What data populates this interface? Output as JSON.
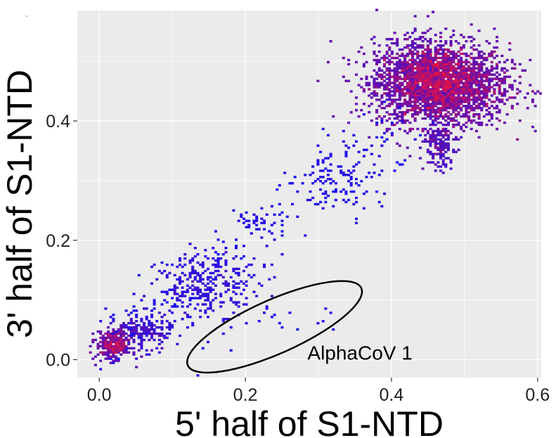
{
  "chart_data": {
    "type": "heatmap",
    "title": "",
    "xlabel": "5' half of S1-NTD",
    "ylabel": "3' half of S1-NTD",
    "xlim": [
      -0.03,
      0.605
    ],
    "ylim": [
      -0.03,
      0.585
    ],
    "x_ticks": [
      0.0,
      0.2,
      0.4,
      0.6
    ],
    "x_tick_labels": [
      "0.0",
      "0.2",
      "0.4",
      "0.6"
    ],
    "y_ticks": [
      0.0,
      0.2,
      0.4
    ],
    "y_tick_labels": [
      "0.0",
      "0.2",
      "0.4"
    ],
    "grid": true,
    "colors": {
      "panel": "#ebebeb",
      "grid": "#ffffff",
      "low": "#1a10f0",
      "high": "#f0103c"
    },
    "clusters": [
      {
        "cx": 0.47,
        "cy": 0.46,
        "sx": 0.045,
        "sy": 0.035,
        "n": 2200,
        "intensity": 1.0
      },
      {
        "cx": 0.445,
        "cy": 0.475,
        "sx": 0.035,
        "sy": 0.03,
        "n": 700,
        "intensity": 0.8
      },
      {
        "cx": 0.465,
        "cy": 0.36,
        "sx": 0.01,
        "sy": 0.02,
        "n": 140,
        "intensity": 0.55
      },
      {
        "cx": 0.02,
        "cy": 0.025,
        "sx": 0.012,
        "sy": 0.012,
        "n": 320,
        "intensity": 0.85
      },
      {
        "cx": 0.06,
        "cy": 0.045,
        "sx": 0.02,
        "sy": 0.015,
        "n": 160,
        "intensity": 0.35
      },
      {
        "cx": 0.15,
        "cy": 0.125,
        "sx": 0.035,
        "sy": 0.025,
        "n": 260,
        "intensity": 0.25
      },
      {
        "cx": 0.335,
        "cy": 0.305,
        "sx": 0.025,
        "sy": 0.03,
        "n": 90,
        "intensity": 0.1
      },
      {
        "cx": 0.22,
        "cy": 0.235,
        "sx": 0.015,
        "sy": 0.01,
        "n": 28,
        "intensity": 0.1
      }
    ],
    "diagonal_scatter": {
      "n": 260,
      "x_range": [
        0.0,
        0.46
      ],
      "slope": 0.96,
      "intercept": 0.01,
      "spread": 0.035
    },
    "alphacov_points": [
      [
        0.14,
        0.02
      ],
      [
        0.15,
        0.03
      ],
      [
        0.17,
        0.045
      ],
      [
        0.18,
        0.055
      ],
      [
        0.2,
        0.06
      ],
      [
        0.22,
        0.065
      ],
      [
        0.225,
        0.08
      ],
      [
        0.23,
        0.085
      ],
      [
        0.24,
        0.075
      ],
      [
        0.235,
        0.07
      ],
      [
        0.245,
        0.06
      ],
      [
        0.25,
        0.055
      ],
      [
        0.26,
        0.08
      ],
      [
        0.27,
        0.05
      ],
      [
        0.3,
        0.06
      ],
      [
        0.31,
        0.085
      ],
      [
        0.315,
        0.08
      ],
      [
        0.32,
        0.05
      ],
      [
        0.18,
        0.015
      ],
      [
        0.305,
        0.065
      ]
    ],
    "annotation": {
      "text": "AlphaCoV 1",
      "ellipse": {
        "cx": 0.24,
        "cy": 0.055,
        "rx": 0.13,
        "ry": 0.045,
        "angle_deg": 24
      },
      "label_x": 0.285,
      "label_y": 0.0
    },
    "corner_mark": "-"
  }
}
